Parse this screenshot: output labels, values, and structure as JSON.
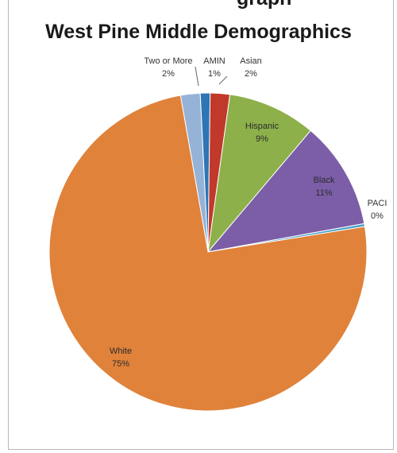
{
  "header_fragment": "graph",
  "chart_data": {
    "type": "pie",
    "title": "West Pine Middle Demographics",
    "categories": [
      "Two or More",
      "AMIN",
      "Asian",
      "Hispanic",
      "Black",
      "PACI",
      "White"
    ],
    "values": [
      2,
      1,
      2,
      9,
      11,
      0.3,
      75
    ],
    "percent_labels": [
      "2%",
      "1%",
      "2%",
      "9%",
      "11%",
      "0%",
      "75%"
    ],
    "colors": [
      "#95b3d7",
      "#2e75b6",
      "#c0392b",
      "#8db04a",
      "#7b5ea7",
      "#4aa0c8",
      "#e0823a"
    ],
    "legend": "none",
    "start_angle_deg": -10
  }
}
